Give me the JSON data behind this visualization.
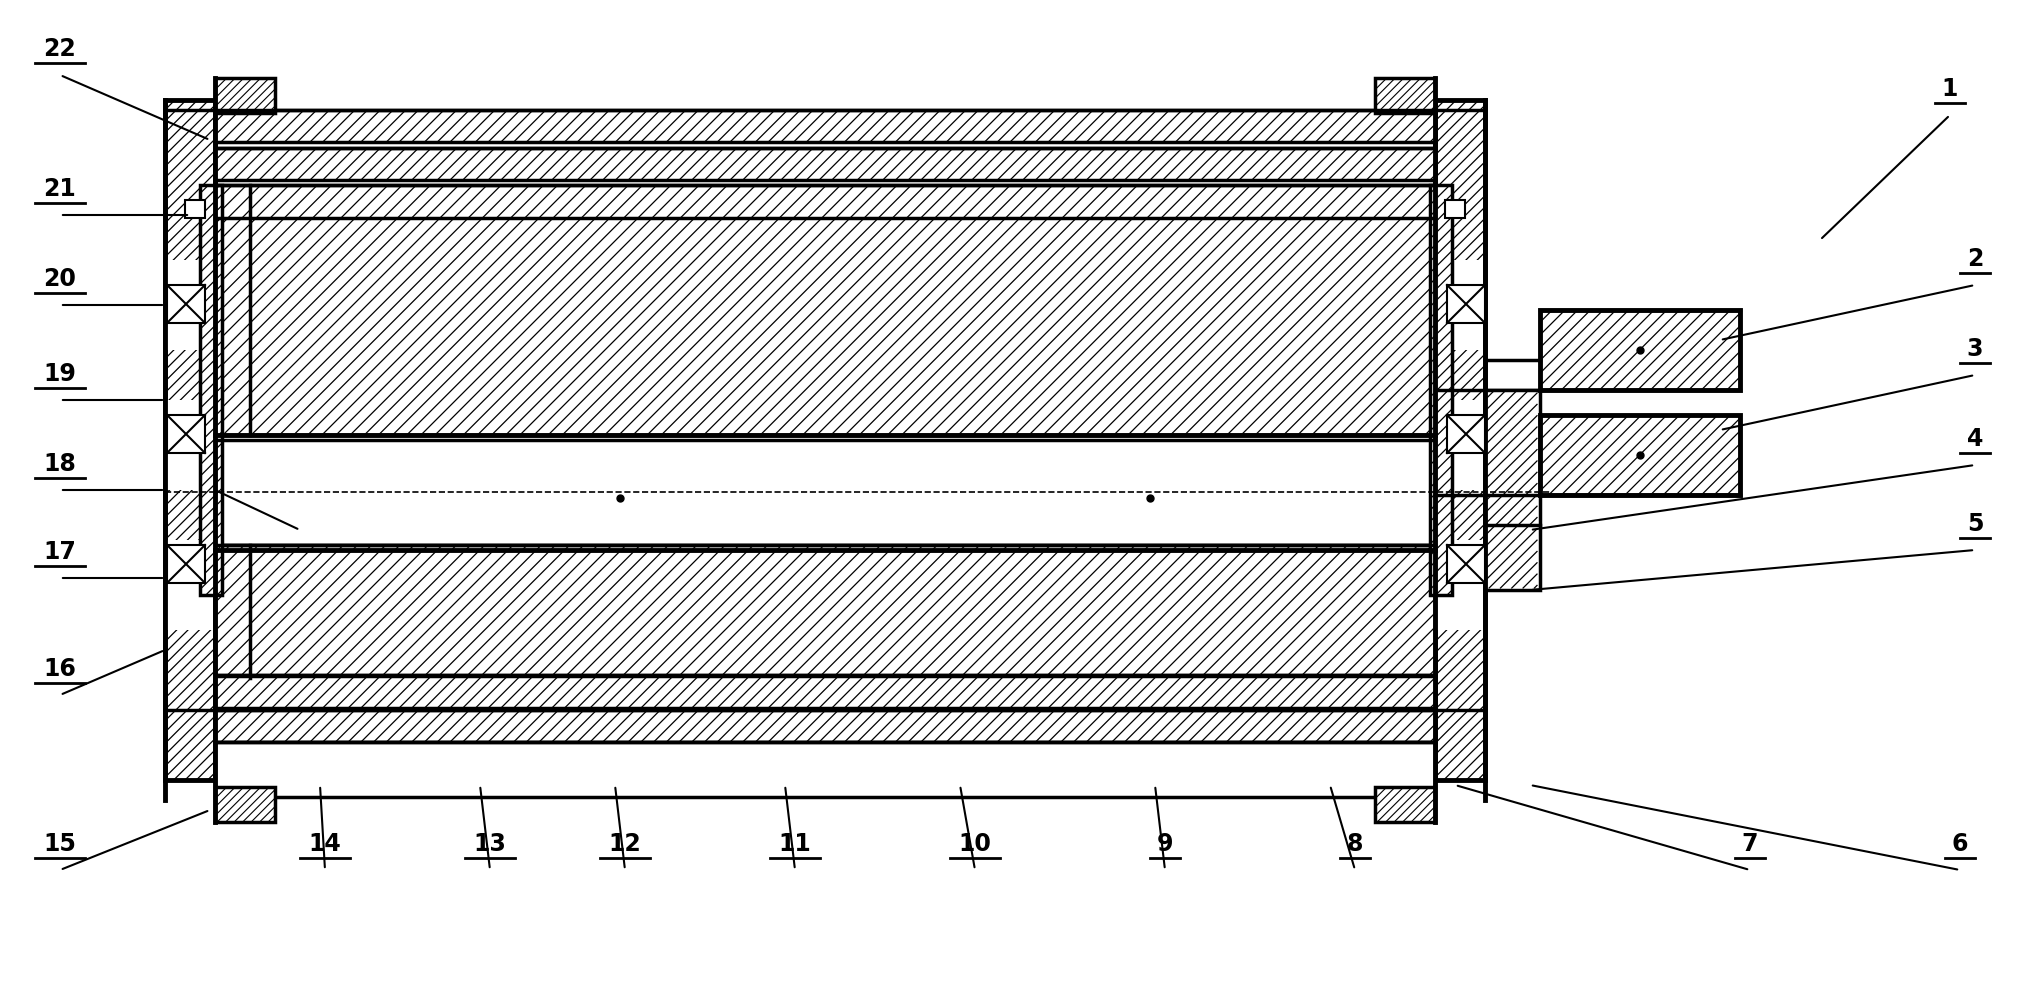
{
  "bg_color": "#ffffff",
  "lc": "#000000",
  "fig_width": 20.24,
  "fig_height": 10.05,
  "label_fontsize": 17,
  "annotations": [
    [
      "1",
      1950,
      115,
      1820,
      240
    ],
    [
      "2",
      1975,
      285,
      1720,
      340
    ],
    [
      "3",
      1975,
      375,
      1720,
      430
    ],
    [
      "4",
      1975,
      465,
      1530,
      530
    ],
    [
      "5",
      1975,
      550,
      1530,
      590
    ],
    [
      "6",
      1960,
      870,
      1530,
      785
    ],
    [
      "7",
      1750,
      870,
      1455,
      785
    ],
    [
      "8",
      1355,
      870,
      1330,
      785
    ],
    [
      "9",
      1165,
      870,
      1155,
      785
    ],
    [
      "10",
      975,
      870,
      960,
      785
    ],
    [
      "11",
      795,
      870,
      785,
      785
    ],
    [
      "12",
      625,
      870,
      615,
      785
    ],
    [
      "13",
      490,
      870,
      480,
      785
    ],
    [
      "14",
      325,
      870,
      320,
      785
    ],
    [
      "15",
      60,
      870,
      210,
      810
    ],
    [
      "16",
      60,
      695,
      165,
      650
    ],
    [
      "17",
      60,
      578,
      165,
      578
    ],
    [
      "18",
      60,
      490,
      165,
      490
    ],
    [
      "19",
      60,
      400,
      165,
      400
    ],
    [
      "20",
      60,
      305,
      165,
      305
    ],
    [
      "21",
      60,
      215,
      190,
      215
    ],
    [
      "22",
      60,
      75,
      210,
      140
    ]
  ]
}
